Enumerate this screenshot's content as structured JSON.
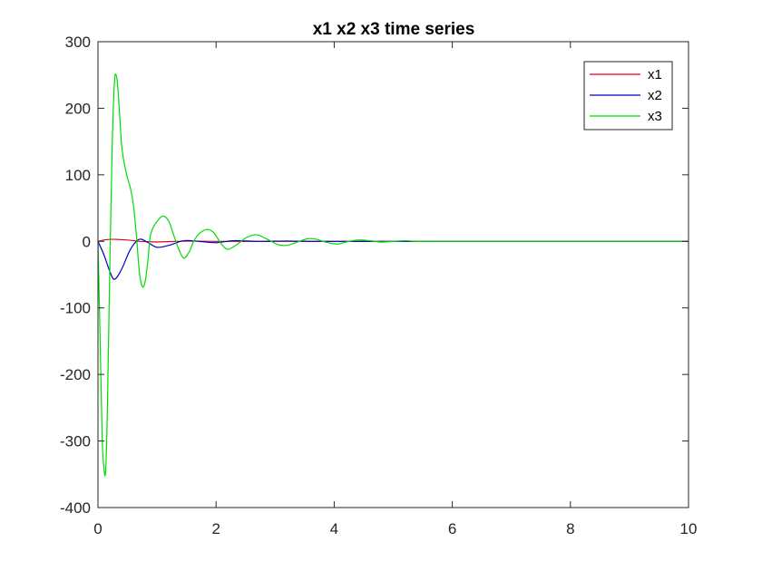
{
  "chart_data": {
    "type": "line",
    "title": "x1 x2 x3 time series",
    "xlabel": "",
    "ylabel": "",
    "xlim": [
      0,
      10
    ],
    "ylim": [
      -400,
      300
    ],
    "xticks": [
      0,
      2,
      4,
      6,
      8,
      10
    ],
    "yticks": [
      -400,
      -300,
      -200,
      -100,
      0,
      100,
      200,
      300
    ],
    "xtick_labels": [
      "0",
      "2",
      "4",
      "6",
      "8",
      "10"
    ],
    "ytick_labels": [
      "-400",
      "-300",
      "-200",
      "-100",
      "0",
      "100",
      "200",
      "300"
    ],
    "grid": false,
    "legend_position": "top-right",
    "series": [
      {
        "name": "x1",
        "color": "#e0001a",
        "x": [
          0,
          0.1,
          0.2,
          0.3,
          0.5,
          0.7,
          1.0,
          1.5,
          2.0,
          3.0,
          10
        ],
        "y": [
          0,
          2,
          3,
          3,
          2,
          0,
          -1,
          0.5,
          0,
          0,
          0
        ]
      },
      {
        "name": "x2",
        "color": "#0000c8",
        "x": [
          0,
          0.1,
          0.2,
          0.28,
          0.4,
          0.55,
          0.7,
          0.85,
          1.0,
          1.2,
          1.45,
          1.7,
          2.0,
          2.3,
          2.7,
          3.2,
          3.7,
          4.5,
          6,
          10
        ],
        "y": [
          0,
          -20,
          -45,
          -57,
          -42,
          -12,
          3,
          -2,
          -9,
          -6,
          1,
          0,
          -2,
          1,
          0,
          0.5,
          0,
          0,
          0,
          0
        ],
        "interpolate": "smooth"
      },
      {
        "name": "x3",
        "color": "#00dd00",
        "x": [
          0,
          0.03,
          0.07,
          0.1,
          0.13,
          0.16,
          0.2,
          0.24,
          0.28,
          0.32,
          0.36,
          0.4,
          0.45,
          0.5,
          0.55,
          0.6,
          0.65,
          0.7,
          0.75,
          0.8,
          0.85,
          0.88,
          0.93,
          1.0,
          1.1,
          1.2,
          1.28,
          1.36,
          1.45,
          1.55,
          1.62,
          1.72,
          1.85,
          1.95,
          2.0,
          2.1,
          2.2,
          2.35,
          2.5,
          2.68,
          2.85,
          3.05,
          3.2,
          3.35,
          3.55,
          3.7,
          3.85,
          4.05,
          4.2,
          4.4,
          4.6,
          4.8,
          5.0,
          5.2,
          5.4,
          5.6,
          5.8,
          6.0,
          6.5,
          7,
          8,
          9,
          10
        ],
        "y": [
          0,
          -120,
          -290,
          -340,
          -345,
          -250,
          -40,
          140,
          240,
          245,
          200,
          145,
          115,
          95,
          80,
          55,
          10,
          -45,
          -68,
          -60,
          -25,
          5,
          20,
          30,
          38,
          30,
          10,
          -10,
          -25,
          -15,
          0,
          12,
          18,
          14,
          8,
          -5,
          -12,
          -5,
          5,
          10,
          4,
          -5,
          -6,
          -2,
          4,
          3,
          -1,
          -4,
          -1,
          2,
          1,
          -1,
          0,
          1,
          0,
          0,
          0,
          0,
          0,
          0,
          0,
          0,
          0
        ],
        "interpolate": "smooth"
      }
    ]
  }
}
